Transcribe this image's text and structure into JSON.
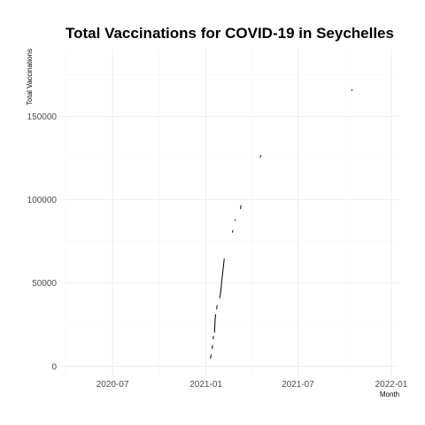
{
  "chart_data": {
    "type": "line",
    "title": "Total Vaccinations for COVID-19 in Seychelles",
    "xlabel": "Month",
    "ylabel": "Total Vaccinations",
    "x_ticks": [
      {
        "date": "2020-07-01",
        "label": "2020-07"
      },
      {
        "date": "2021-01-01",
        "label": "2021-01"
      },
      {
        "date": "2021-07-01",
        "label": "2021-07"
      },
      {
        "date": "2022-01-01",
        "label": "2022-01"
      }
    ],
    "y_ticks": [
      {
        "value": 0,
        "label": "0"
      },
      {
        "value": 50000,
        "label": "50000"
      },
      {
        "value": 100000,
        "label": "100000"
      },
      {
        "value": 150000,
        "label": "150000"
      }
    ],
    "xlim": [
      "2020-03-20",
      "2022-01-15"
    ],
    "ylim": [
      -7000,
      190000
    ],
    "grid": true,
    "segments": [
      [
        {
          "x": "2021-01-10",
          "y": 4800
        },
        {
          "x": "2021-01-11",
          "y": 7000
        }
      ],
      [
        {
          "x": "2021-01-13",
          "y": 10800
        },
        {
          "x": "2021-01-14",
          "y": 12500
        }
      ],
      [
        {
          "x": "2021-01-15",
          "y": 16500
        },
        {
          "x": "2021-01-16",
          "y": 18000
        }
      ],
      [
        {
          "x": "2021-01-18",
          "y": 20500
        },
        {
          "x": "2021-01-19",
          "y": 28000
        },
        {
          "x": "2021-01-20",
          "y": 31000
        }
      ],
      [
        {
          "x": "2021-01-22",
          "y": 34500
        },
        {
          "x": "2021-01-23",
          "y": 36500
        }
      ],
      [
        {
          "x": "2021-01-28",
          "y": 41000
        },
        {
          "x": "2021-01-30",
          "y": 44500
        },
        {
          "x": "2021-02-01",
          "y": 51000
        },
        {
          "x": "2021-02-04",
          "y": 59000
        },
        {
          "x": "2021-02-06",
          "y": 64500
        }
      ],
      [
        {
          "x": "2021-02-22",
          "y": 80500
        },
        {
          "x": "2021-02-23",
          "y": 81500
        }
      ],
      [
        {
          "x": "2021-02-27",
          "y": 87500
        },
        {
          "x": "2021-02-28",
          "y": 88000
        }
      ],
      [
        {
          "x": "2021-03-10",
          "y": 94500
        },
        {
          "x": "2021-03-11",
          "y": 96500
        }
      ],
      [
        {
          "x": "2021-04-18",
          "y": 125500
        },
        {
          "x": "2021-04-19",
          "y": 126500
        }
      ],
      [
        {
          "x": "2021-10-15",
          "y": 165500
        },
        {
          "x": "2021-10-16",
          "y": 166000
        }
      ]
    ]
  }
}
